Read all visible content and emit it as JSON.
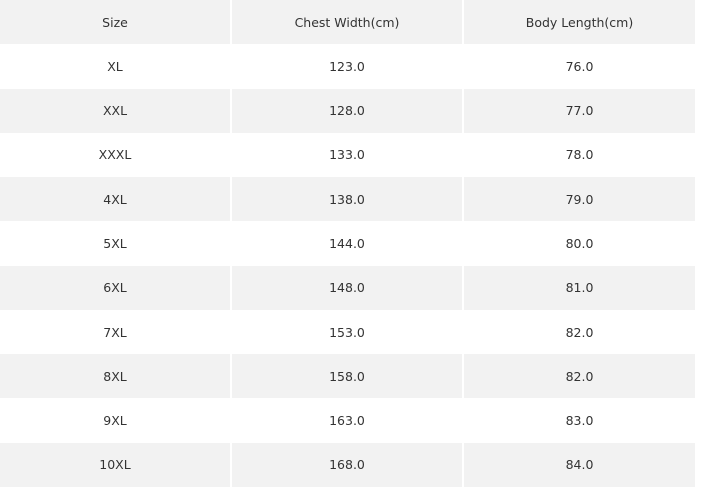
{
  "table": {
    "header": [
      "Size",
      "Chest Width(cm)",
      "Body Length(cm)"
    ],
    "rows": [
      [
        "XL",
        "123.0",
        "76.0"
      ],
      [
        "XXL",
        "128.0",
        "77.0"
      ],
      [
        "XXXL",
        "133.0",
        "78.0"
      ],
      [
        "4XL",
        "138.0",
        "79.0"
      ],
      [
        "5XL",
        "144.0",
        "80.0"
      ],
      [
        "6XL",
        "148.0",
        "81.0"
      ],
      [
        "7XL",
        "153.0",
        "82.0"
      ],
      [
        "8XL",
        "158.0",
        "82.0"
      ],
      [
        "9XL",
        "163.0",
        "83.0"
      ],
      [
        "10XL",
        "168.0",
        "84.0"
      ]
    ]
  }
}
